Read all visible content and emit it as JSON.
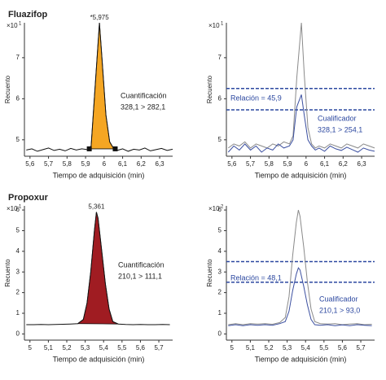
{
  "chart_data": [
    {
      "type": "line",
      "title": "Fluazifop",
      "y_label": "Recuento",
      "x_label": "Tiempo de adquisición (min)",
      "y_multiplier": "×10",
      "y_multiplier_exp": "1",
      "xlim": [
        5.57,
        6.37
      ],
      "ylim": [
        4.6,
        7.85
      ],
      "xticks": [
        {
          "value": 5.6,
          "label": "5,6"
        },
        {
          "value": 5.7,
          "label": "5,7"
        },
        {
          "value": 5.8,
          "label": "5,8"
        },
        {
          "value": 5.9,
          "label": "5,9"
        },
        {
          "value": 6,
          "label": "6"
        },
        {
          "value": 6.1,
          "label": "6,1"
        },
        {
          "value": 6.2,
          "label": "6,2"
        },
        {
          "value": 6.3,
          "label": "6,3"
        }
      ],
      "yticks": [
        5,
        6,
        7
      ],
      "x": [
        5.58,
        5.61,
        5.64,
        5.67,
        5.7,
        5.73,
        5.76,
        5.79,
        5.82,
        5.85,
        5.88,
        5.91,
        5.93,
        5.95,
        5.975,
        5.99,
        6.01,
        6.03,
        6.05,
        6.07,
        6.1,
        6.13,
        6.16,
        6.19,
        6.22,
        6.25,
        6.28,
        6.31,
        6.34,
        6.37
      ],
      "series": [
        {
          "color": "#111111",
          "values": [
            4.75,
            4.78,
            4.72,
            4.76,
            4.8,
            4.74,
            4.77,
            4.73,
            4.79,
            4.75,
            4.78,
            4.76,
            4.85,
            6.2,
            7.85,
            6.9,
            5.6,
            4.95,
            4.8,
            4.74,
            4.78,
            4.72,
            4.77,
            4.75,
            4.8,
            4.73,
            4.76,
            4.79,
            4.74,
            4.77
          ]
        }
      ],
      "fill_color": "#f5a623",
      "markers": {
        "x": [
          5.92,
          6.06
        ],
        "y": [
          4.78,
          4.78
        ]
      },
      "peak_label": "*5,975",
      "annotations": [
        "Cuantificación",
        "328,1 > 282,1"
      ]
    },
    {
      "type": "line",
      "y_label": "Recuento",
      "x_label": "Tiempo de adquisición (min)",
      "y_multiplier": "×10",
      "y_multiplier_exp": "1",
      "xlim": [
        5.57,
        6.37
      ],
      "ylim": [
        4.6,
        7.85
      ],
      "xticks": [
        {
          "value": 5.6,
          "label": "5,6"
        },
        {
          "value": 5.7,
          "label": "5,7"
        },
        {
          "value": 5.8,
          "label": "5,8"
        },
        {
          "value": 5.9,
          "label": "5,9"
        },
        {
          "value": 6,
          "label": "6"
        },
        {
          "value": 6.1,
          "label": "6,1"
        },
        {
          "value": 6.2,
          "label": "6,2"
        },
        {
          "value": 6.3,
          "label": "6,3"
        }
      ],
      "yticks": [
        5,
        6,
        7
      ],
      "x": [
        5.58,
        5.61,
        5.64,
        5.67,
        5.7,
        5.73,
        5.76,
        5.79,
        5.82,
        5.85,
        5.88,
        5.91,
        5.93,
        5.95,
        5.975,
        5.99,
        6.01,
        6.03,
        6.05,
        6.07,
        6.1,
        6.13,
        6.16,
        6.19,
        6.22,
        6.25,
        6.28,
        6.31,
        6.34,
        6.37
      ],
      "series": [
        {
          "color": "#8a8a8a",
          "values": [
            4.8,
            4.9,
            4.85,
            4.95,
            4.8,
            4.9,
            4.85,
            4.8,
            4.9,
            4.85,
            4.95,
            4.9,
            5.1,
            6.5,
            7.85,
            6.6,
            5.3,
            4.9,
            4.8,
            4.85,
            4.8,
            4.9,
            4.85,
            4.8,
            4.9,
            4.85,
            4.8,
            4.9,
            4.85,
            4.8
          ]
        },
        {
          "color": "#3b4fa0",
          "values": [
            4.7,
            4.85,
            4.75,
            4.9,
            4.75,
            4.85,
            4.7,
            4.8,
            4.75,
            4.9,
            4.8,
            4.85,
            5.0,
            5.8,
            6.1,
            5.6,
            5.0,
            4.85,
            4.75,
            4.8,
            4.72,
            4.85,
            4.78,
            4.74,
            4.82,
            4.76,
            4.7,
            4.8,
            4.75,
            4.72
          ]
        }
      ],
      "ref_lines": [
        6.25,
        5.73
      ],
      "ref_color": "#2c48a0",
      "annotations": [
        "Relación = 45,9",
        "Cualificador",
        "328,1 > 254,1"
      ]
    },
    {
      "type": "line",
      "title": "Propoxur",
      "y_label": "Recuento",
      "x_label": "Tiempo de adquisición (min)",
      "y_multiplier": "×10",
      "y_multiplier_exp": "1",
      "xlim": [
        4.97,
        5.775
      ],
      "ylim": [
        -0.3,
        6.2
      ],
      "xticks": [
        5,
        {
          "value": 5.1,
          "label": "5,1"
        },
        {
          "value": 5.2,
          "label": "5,2"
        },
        {
          "value": 5.3,
          "label": "5,3"
        },
        {
          "value": 5.4,
          "label": "5,4"
        },
        {
          "value": 5.5,
          "label": "5,5"
        },
        {
          "value": 5.6,
          "label": "5,6"
        },
        {
          "value": 5.7,
          "label": "5,7"
        }
      ],
      "yticks": [
        0,
        1,
        2,
        3,
        4,
        5,
        6
      ],
      "x": [
        4.98,
        5.02,
        5.06,
        5.1,
        5.14,
        5.18,
        5.22,
        5.26,
        5.29,
        5.31,
        5.33,
        5.35,
        5.361,
        5.37,
        5.39,
        5.41,
        5.43,
        5.45,
        5.48,
        5.52,
        5.56,
        5.6,
        5.64,
        5.68,
        5.72,
        5.76
      ],
      "series": [
        {
          "color": "#111111",
          "values": [
            0.45,
            0.45,
            0.46,
            0.45,
            0.46,
            0.47,
            0.48,
            0.5,
            0.7,
            1.5,
            3.0,
            5.0,
            5.9,
            5.6,
            4.0,
            2.4,
            1.2,
            0.6,
            0.48,
            0.46,
            0.45,
            0.46,
            0.45,
            0.45,
            0.46,
            0.45
          ]
        }
      ],
      "fill_color": "#a01c22",
      "fill_range": [
        5.26,
        5.48
      ],
      "peak_label": "5,361",
      "annotations": [
        "Cuantificación",
        "210,1 > 111,1"
      ]
    },
    {
      "type": "line",
      "y_label": "Recuento",
      "x_label": "Tiempo de adquisición (min)",
      "y_multiplier": "×10",
      "y_multiplier_exp": "2",
      "xlim": [
        4.97,
        5.775
      ],
      "ylim": [
        -0.3,
        6.2
      ],
      "xticks": [
        5,
        {
          "value": 5.1,
          "label": "5,1"
        },
        {
          "value": 5.2,
          "label": "5,2"
        },
        {
          "value": 5.3,
          "label": "5,3"
        },
        {
          "value": 5.4,
          "label": "5,4"
        },
        {
          "value": 5.5,
          "label": "5,5"
        },
        {
          "value": 5.6,
          "label": "5,6"
        },
        {
          "value": 5.7,
          "label": "5,7"
        }
      ],
      "yticks": [
        0,
        1,
        2,
        3,
        4,
        5,
        6
      ],
      "x": [
        4.98,
        5.02,
        5.06,
        5.1,
        5.14,
        5.18,
        5.22,
        5.26,
        5.29,
        5.31,
        5.33,
        5.35,
        5.361,
        5.37,
        5.39,
        5.41,
        5.43,
        5.45,
        5.48,
        5.52,
        5.56,
        5.6,
        5.64,
        5.68,
        5.72,
        5.76
      ],
      "series": [
        {
          "color": "#8a8a8a",
          "values": [
            0.45,
            0.5,
            0.45,
            0.5,
            0.48,
            0.5,
            0.47,
            0.55,
            0.8,
            1.8,
            3.8,
            5.4,
            6.0,
            5.7,
            4.2,
            2.5,
            1.2,
            0.6,
            0.5,
            0.48,
            0.5,
            0.45,
            0.48,
            0.5,
            0.45,
            0.47
          ]
        },
        {
          "color": "#3b4fa0",
          "values": [
            0.4,
            0.45,
            0.4,
            0.45,
            0.42,
            0.45,
            0.42,
            0.5,
            0.6,
            1.1,
            2.1,
            2.9,
            3.2,
            3.1,
            2.3,
            1.4,
            0.7,
            0.45,
            0.42,
            0.45,
            0.4,
            0.44,
            0.4,
            0.45,
            0.42,
            0.4
          ]
        }
      ],
      "ref_lines": [
        3.5,
        2.5
      ],
      "ref_color": "#2c48a0",
      "annotations": [
        "Relación = 48,1",
        "Cualificador",
        "210,1 > 93,0"
      ]
    }
  ]
}
